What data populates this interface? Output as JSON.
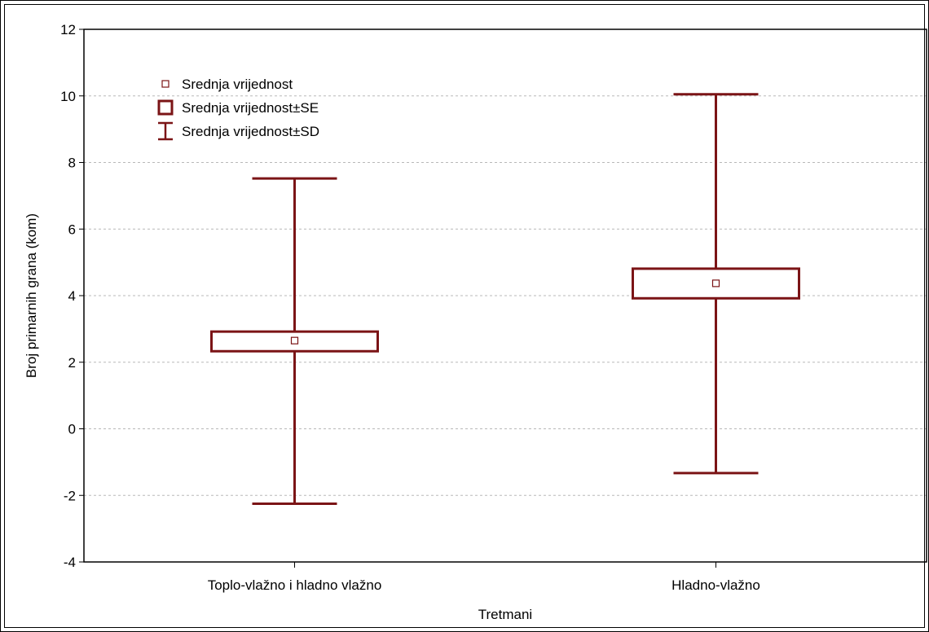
{
  "chart_data": {
    "type": "box",
    "xlabel": "Tretmani",
    "ylabel": "Broj primarnih grana (kom)",
    "ylim": [
      -4,
      12
    ],
    "yticks": [
      -4,
      -2,
      0,
      2,
      4,
      6,
      8,
      10,
      12
    ],
    "grid": true,
    "legend_position": "top-left",
    "color": "#7b1416",
    "legend": [
      "Srednja vrijednost",
      "Srednja vrijednost±SE",
      "Srednja vrijednost±SD"
    ],
    "categories": [
      "Toplo-vlažno i hladno vlažno",
      "Hladno-vlažno"
    ],
    "series": [
      {
        "mean": 2.65,
        "se_low": 2.33,
        "se_high": 2.92,
        "sd_low": -2.25,
        "sd_high": 7.52
      },
      {
        "mean": 4.37,
        "se_low": 3.92,
        "se_high": 4.81,
        "sd_low": -1.33,
        "sd_high": 10.05
      }
    ]
  }
}
